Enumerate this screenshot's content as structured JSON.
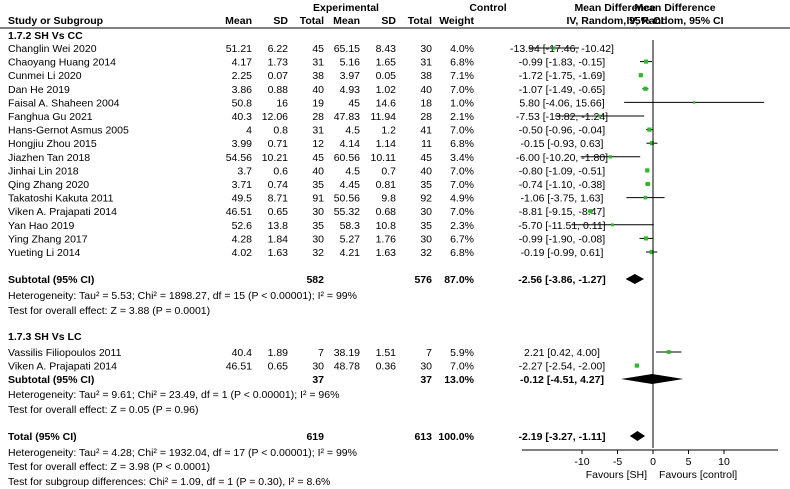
{
  "chart_data": {
    "type": "forest",
    "header": {
      "study": "Study or Subgroup",
      "experimental": "Experimental",
      "control": "Control",
      "mean": "Mean",
      "sd": "SD",
      "total": "Total",
      "weight": "Weight",
      "md": "Mean Difference",
      "md_method": "IV, Random, 95% CI"
    },
    "subgroups": [
      {
        "title": "1.7.2 SH Vs CC",
        "studies": [
          {
            "name": "Changlin Wei 2020",
            "e_mean": "51.21",
            "e_sd": "6.22",
            "e_total": "45",
            "c_mean": "65.15",
            "c_sd": "8.43",
            "c_total": "30",
            "weight": "4.0%",
            "ci_text": "-13.94 [-17.46, -10.42]",
            "md": -13.94,
            "lo": -17.46,
            "hi": -10.42
          },
          {
            "name": "Chaoyang Huang 2014",
            "e_mean": "4.17",
            "e_sd": "1.73",
            "e_total": "31",
            "c_mean": "5.16",
            "c_sd": "1.65",
            "c_total": "31",
            "weight": "6.8%",
            "ci_text": "-0.99 [-1.83, -0.15]",
            "md": -0.99,
            "lo": -1.83,
            "hi": -0.15
          },
          {
            "name": "Cunmei Li 2020",
            "e_mean": "2.25",
            "e_sd": "0.07",
            "e_total": "38",
            "c_mean": "3.97",
            "c_sd": "0.05",
            "c_total": "38",
            "weight": "7.1%",
            "ci_text": "-1.72 [-1.75, -1.69]",
            "md": -1.72,
            "lo": -1.75,
            "hi": -1.69
          },
          {
            "name": "Dan He 2019",
            "e_mean": "3.86",
            "e_sd": "0.88",
            "e_total": "40",
            "c_mean": "4.93",
            "c_sd": "1.02",
            "c_total": "40",
            "weight": "7.0%",
            "ci_text": "-1.07 [-1.49, -0.65]",
            "md": -1.07,
            "lo": -1.49,
            "hi": -0.65
          },
          {
            "name": "Faisal A. Shaheen 2004",
            "e_mean": "50.8",
            "e_sd": "16",
            "e_total": "19",
            "c_mean": "45",
            "c_sd": "14.6",
            "c_total": "18",
            "weight": "1.0%",
            "ci_text": "5.80 [-4.06, 15.66]",
            "md": 5.8,
            "lo": -4.06,
            "hi": 15.66
          },
          {
            "name": "Fanghua Gu 2021",
            "e_mean": "40.3",
            "e_sd": "12.06",
            "e_total": "28",
            "c_mean": "47.83",
            "c_sd": "11.94",
            "c_total": "28",
            "weight": "2.1%",
            "ci_text": "-7.53 [-13.82, -1.24]",
            "md": -7.53,
            "lo": -13.82,
            "hi": -1.24
          },
          {
            "name": "Hans-Gernot Asmus 2005",
            "e_mean": "4",
            "e_sd": "0.8",
            "e_total": "31",
            "c_mean": "4.5",
            "c_sd": "1.2",
            "c_total": "41",
            "weight": "7.0%",
            "ci_text": "-0.50 [-0.96, -0.04]",
            "md": -0.5,
            "lo": -0.96,
            "hi": -0.04
          },
          {
            "name": "Hongjiu Zhou 2015",
            "e_mean": "3.99",
            "e_sd": "0.71",
            "e_total": "12",
            "c_mean": "4.14",
            "c_sd": "1.14",
            "c_total": "11",
            "weight": "6.8%",
            "ci_text": "-0.15 [-0.93, 0.63]",
            "md": -0.15,
            "lo": -0.93,
            "hi": 0.63
          },
          {
            "name": "Jiazhen Tan 2018",
            "e_mean": "54.56",
            "e_sd": "10.21",
            "e_total": "45",
            "c_mean": "60.56",
            "c_sd": "10.11",
            "c_total": "45",
            "weight": "3.4%",
            "ci_text": "-6.00 [-10.20, -1.80]",
            "md": -6.0,
            "lo": -10.2,
            "hi": -1.8
          },
          {
            "name": "Jinhai Lin 2018",
            "e_mean": "3.7",
            "e_sd": "0.6",
            "e_total": "40",
            "c_mean": "4.5",
            "c_sd": "0.7",
            "c_total": "40",
            "weight": "7.0%",
            "ci_text": "-0.80 [-1.09, -0.51]",
            "md": -0.8,
            "lo": -1.09,
            "hi": -0.51
          },
          {
            "name": "Qing Zhang 2020",
            "e_mean": "3.71",
            "e_sd": "0.74",
            "e_total": "35",
            "c_mean": "4.45",
            "c_sd": "0.81",
            "c_total": "35",
            "weight": "7.0%",
            "ci_text": "-0.74 [-1.10, -0.38]",
            "md": -0.74,
            "lo": -1.1,
            "hi": -0.38
          },
          {
            "name": "Takatoshi Kakuta 2011",
            "e_mean": "49.5",
            "e_sd": "8.71",
            "e_total": "91",
            "c_mean": "50.56",
            "c_sd": "9.8",
            "c_total": "92",
            "weight": "4.9%",
            "ci_text": "-1.06 [-3.75, 1.63]",
            "md": -1.06,
            "lo": -3.75,
            "hi": 1.63
          },
          {
            "name": "Viken A. Prajapati 2014",
            "e_mean": "46.51",
            "e_sd": "0.65",
            "e_total": "30",
            "c_mean": "55.32",
            "c_sd": "0.68",
            "c_total": "30",
            "weight": "7.0%",
            "ci_text": "-8.81 [-9.15, -8.47]",
            "md": -8.81,
            "lo": -9.15,
            "hi": -8.47
          },
          {
            "name": "Yan Hao 2019",
            "e_mean": "52.6",
            "e_sd": "13.8",
            "e_total": "35",
            "c_mean": "58.3",
            "c_sd": "10.8",
            "c_total": "35",
            "weight": "2.3%",
            "ci_text": "-5.70 [-11.51, 0.11]",
            "md": -5.7,
            "lo": -11.51,
            "hi": 0.11
          },
          {
            "name": "Ying Zhang 2017",
            "e_mean": "4.28",
            "e_sd": "1.84",
            "e_total": "30",
            "c_mean": "5.27",
            "c_sd": "1.76",
            "c_total": "30",
            "weight": "6.7%",
            "ci_text": "-0.99 [-1.90, -0.08]",
            "md": -0.99,
            "lo": -1.9,
            "hi": -0.08
          },
          {
            "name": "Yueting Li 2014",
            "e_mean": "4.02",
            "e_sd": "1.63",
            "e_total": "32",
            "c_mean": "4.21",
            "c_sd": "1.63",
            "c_total": "32",
            "weight": "6.8%",
            "ci_text": "-0.19 [-0.99, 0.61]",
            "md": -0.19,
            "lo": -0.99,
            "hi": 0.61
          }
        ],
        "subtotal": {
          "label": "Subtotal (95% CI)",
          "e_total": "582",
          "c_total": "576",
          "weight": "87.0%",
          "ci_text": "-2.56 [-3.86, -1.27]",
          "md": -2.56,
          "lo": -3.86,
          "hi": -1.27
        },
        "heterogeneity": "Heterogeneity: Tau² = 5.53; Chi² = 1898.27, df = 15 (P < 0.00001); I² = 99%",
        "overall_effect": "Test for overall effect: Z = 3.88 (P = 0.0001)"
      },
      {
        "title": "1.7.3 SH Vs LC",
        "studies": [
          {
            "name": "Vassilis Filiopoulos 2011",
            "e_mean": "40.4",
            "e_sd": "1.89",
            "e_total": "7",
            "c_mean": "38.19",
            "c_sd": "1.51",
            "c_total": "7",
            "weight": "5.9%",
            "ci_text": "2.21 [0.42, 4.00]",
            "md": 2.21,
            "lo": 0.42,
            "hi": 4.0
          },
          {
            "name": "Viken A. Prajapati 2014",
            "e_mean": "46.51",
            "e_sd": "0.65",
            "e_total": "30",
            "c_mean": "48.78",
            "c_sd": "0.36",
            "c_total": "30",
            "weight": "7.0%",
            "ci_text": "-2.27 [-2.54, -2.00]",
            "md": -2.27,
            "lo": -2.54,
            "hi": -2.0
          }
        ],
        "subtotal": {
          "label": "Subtotal (95% CI)",
          "e_total": "37",
          "c_total": "37",
          "weight": "13.0%",
          "ci_text": "-0.12 [-4.51, 4.27]",
          "md": -0.12,
          "lo": -4.51,
          "hi": 4.27
        },
        "heterogeneity": "Heterogeneity: Tau² = 9.61; Chi² = 23.49, df = 1 (P < 0.00001); I² = 96%",
        "overall_effect": "Test for overall effect: Z = 0.05 (P = 0.96)"
      }
    ],
    "total": {
      "label": "Total (95% CI)",
      "e_total": "619",
      "c_total": "613",
      "weight": "100.0%",
      "ci_text": "-2.19 [-3.27, -1.11]",
      "md": -2.19,
      "lo": -3.27,
      "hi": -1.11
    },
    "total_heterogeneity": "Heterogeneity: Tau² = 4.28; Chi² = 1932.04, df = 17 (P < 0.00001); I² = 99%",
    "total_overall_effect": "Test for overall effect: Z = 3.98 (P < 0.0001)",
    "subgroup_differences": "Test for subgroup differences: Chi² = 1.09, df = 1 (P = 0.30), I² = 8.6%",
    "axis": {
      "xlim": [
        -20,
        20
      ],
      "ticks": [
        -10,
        -5,
        0,
        5,
        10
      ],
      "tick_labels": [
        "-10",
        "-5",
        "0",
        "5",
        "10"
      ],
      "favours_left": "Favours [SH]",
      "favours_right": "Favours [control]"
    },
    "colors": {
      "marker": "#2db82d",
      "line": "#000000",
      "diamond": "#000000"
    }
  }
}
